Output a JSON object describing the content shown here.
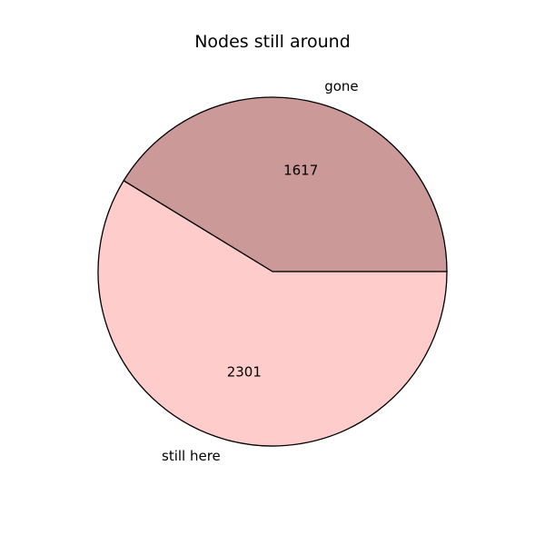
{
  "chart_data": {
    "type": "pie",
    "title": "Nodes still around",
    "slices": [
      {
        "label": "gone",
        "value": 1617,
        "color": "#cc9999"
      },
      {
        "label": "still here",
        "value": 2301,
        "color": "#ffcccc"
      }
    ],
    "start_angle_deg": 0,
    "direction": "counterclockwise",
    "value_labels": true,
    "edge_color": "#000000"
  }
}
